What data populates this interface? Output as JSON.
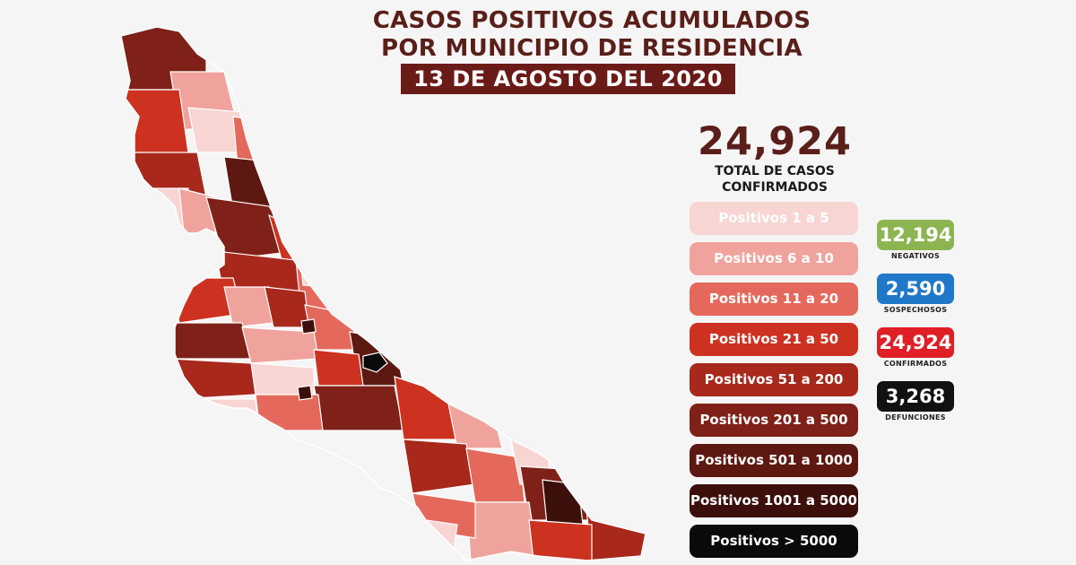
{
  "header": {
    "title_line1": "CASOS POSITIVOS ACUMULADOS",
    "title_line2": "POR MUNICIPIO DE RESIDENCIA",
    "date": "13 DE AGOSTO DEL 2020"
  },
  "summary": {
    "total": "24,924",
    "total_label_line1": "TOTAL DE CASOS",
    "total_label_line2": "CONFIRMADOS"
  },
  "legend": [
    {
      "label": "Positivos 1 a 5",
      "color": "#f8d5d3",
      "text_color": "#ffffff"
    },
    {
      "label": "Positivos 6 a 10",
      "color": "#f0a39c",
      "text_color": "#ffffff"
    },
    {
      "label": "Positivos 11 a 20",
      "color": "#e4695c",
      "text_color": "#ffffff"
    },
    {
      "label": "Positivos 21 a 50",
      "color": "#cd3221",
      "text_color": "#ffffff"
    },
    {
      "label": "Positivos 51 a 200",
      "color": "#a8281c",
      "text_color": "#ffffff"
    },
    {
      "label": "Positivos 201 a 500",
      "color": "#7f2118",
      "text_color": "#ffffff"
    },
    {
      "label": "Positivos 501 a 1000",
      "color": "#5e1812",
      "text_color": "#ffffff"
    },
    {
      "label": "Positivos 1001 a 5000",
      "color": "#3d0f0b",
      "text_color": "#ffffff"
    },
    {
      "label": "Positivos > 5000",
      "color": "#0a0a0a",
      "text_color": "#ffffff"
    }
  ],
  "stats": [
    {
      "value": "12,194",
      "label": "NEGATIVOS",
      "color": "#8cb552"
    },
    {
      "value": "2,590",
      "label": "SOSPECHOSOS",
      "color": "#1f78c8"
    },
    {
      "value": "24,924",
      "label": "CONFIRMADOS",
      "color": "#e01e26"
    },
    {
      "value": "3,268",
      "label": "DEFUNCIONES",
      "color": "#111111"
    }
  ],
  "map_colors": {
    "outline": "#ffffff",
    "default_fill": "#a8281c"
  }
}
